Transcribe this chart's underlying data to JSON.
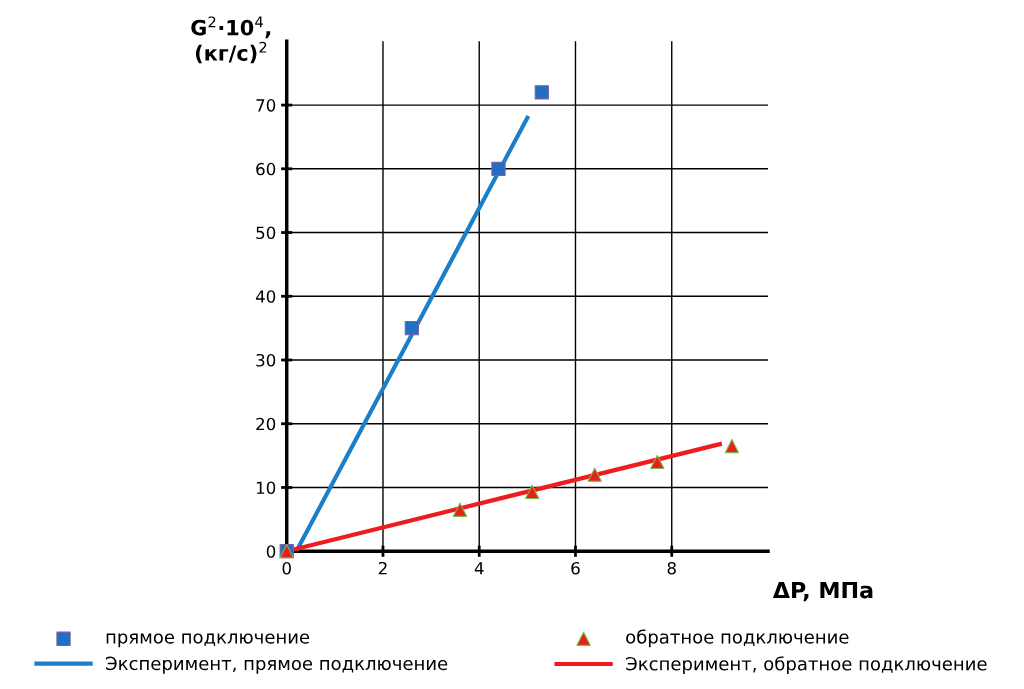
{
  "chart_data": {
    "type": "scatter",
    "xlabel": "ΔP, МПа",
    "ylabel": "G$^{2}$·10$^{4}$,\n(кг/с)$^{2}$",
    "xlim": [
      0,
      10
    ],
    "ylim": [
      0,
      80
    ],
    "xticks": [
      0,
      2,
      4,
      6,
      8
    ],
    "yticks": [
      0,
      10,
      20,
      30,
      40,
      50,
      60,
      70
    ],
    "grid": true,
    "legend": "bottom",
    "series": [
      {
        "name": "прямое подключение",
        "marker": "square",
        "color": "#1f6fc5",
        "x": [
          0,
          2.6,
          4.4,
          5.3
        ],
        "values": [
          0,
          35,
          60,
          72
        ]
      },
      {
        "name": "Эксперимент, прямое подключение",
        "type": "line",
        "marker": "none",
        "color": "#1a7fc8",
        "x": [
          0.2,
          5.0
        ],
        "values": [
          0,
          68
        ]
      },
      {
        "name": "обратное подключение",
        "marker": "triangle",
        "color": "#e8201c",
        "x": [
          0,
          3.6,
          5.1,
          6.4,
          7.7,
          9.25
        ],
        "values": [
          0,
          6.5,
          9.3,
          12,
          14,
          16.5
        ]
      },
      {
        "name": "Эксперимент, обратное подключение",
        "type": "line",
        "marker": "none",
        "color": "#ee1c1c",
        "x": [
          0,
          9
        ],
        "values": [
          0,
          16.8
        ]
      }
    ]
  }
}
